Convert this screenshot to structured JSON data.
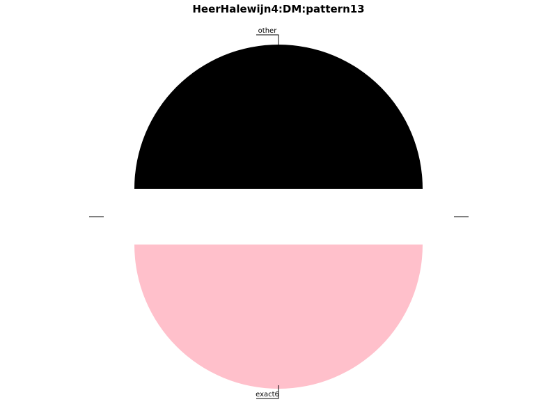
{
  "chart_data": {
    "type": "pie",
    "title": "HeerHalewijn4:DM:pattern13",
    "slices": [
      {
        "label": "other",
        "value": 50,
        "color": "#000000"
      },
      {
        "label": "exact6",
        "value": 50,
        "color": "#ffc0cb"
      }
    ],
    "legend": "none"
  }
}
